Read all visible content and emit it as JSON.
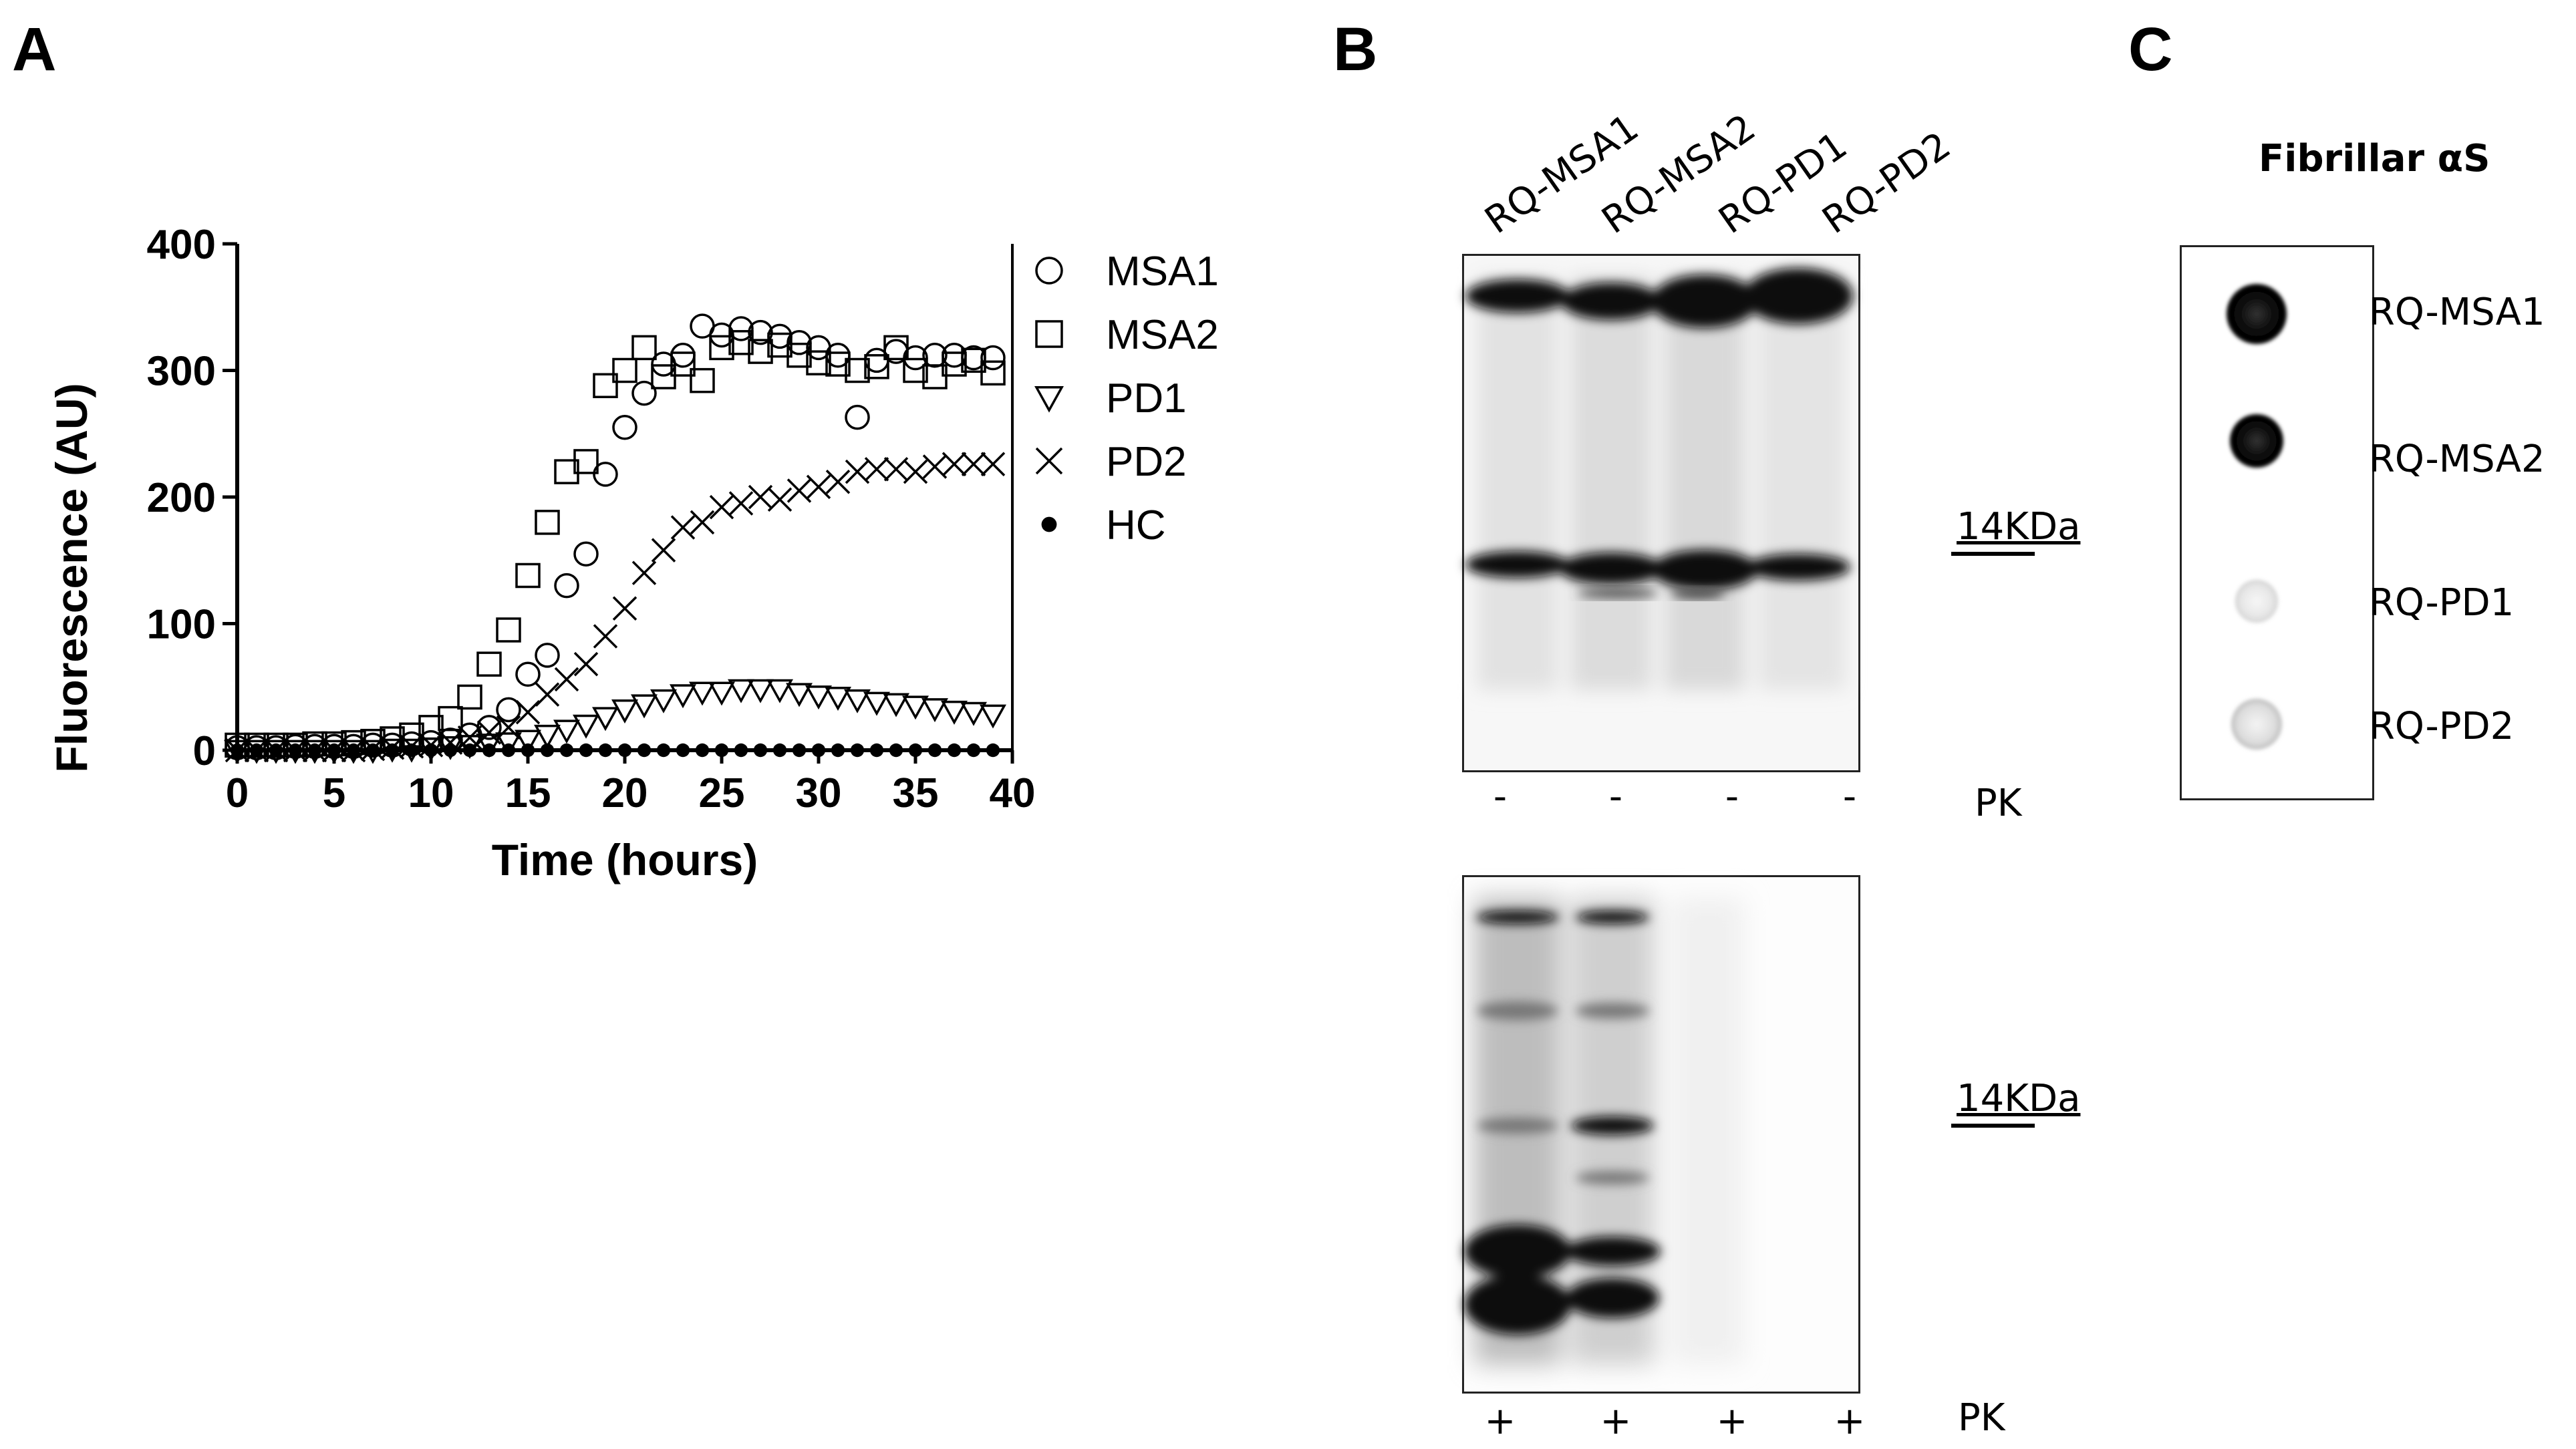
{
  "panels": {
    "a_letter": "A",
    "b_letter": "B",
    "c_letter": "C"
  },
  "chart_data": {
    "type": "scatter",
    "title": "",
    "xlabel": "Time (hours)",
    "ylabel": "Fluorescence (AU)",
    "xlim": [
      0,
      40
    ],
    "ylim": [
      0,
      400
    ],
    "xticks": [
      "0",
      "5",
      "10",
      "15",
      "20",
      "25",
      "30",
      "35",
      "40"
    ],
    "yticks": [
      "0",
      "100",
      "200",
      "300",
      "400"
    ],
    "grid": false,
    "legend_position": "right",
    "series": [
      {
        "name": "MSA1",
        "marker": "circle",
        "x": [
          0,
          1,
          2,
          3,
          4,
          5,
          6,
          7,
          8,
          9,
          10,
          11,
          12,
          13,
          14,
          15,
          16,
          17,
          18,
          19,
          20,
          21,
          22,
          23,
          24,
          25,
          26,
          27,
          28,
          29,
          30,
          31,
          32,
          33,
          34,
          35,
          36,
          37,
          38,
          39
        ],
        "y": [
          2,
          2,
          2,
          3,
          3,
          3,
          3,
          4,
          4,
          5,
          6,
          8,
          12,
          18,
          32,
          60,
          75,
          130,
          155,
          218,
          255,
          282,
          305,
          312,
          335,
          328,
          333,
          330,
          327,
          322,
          318,
          312,
          263,
          308,
          315,
          310,
          312,
          312,
          310,
          310
        ]
      },
      {
        "name": "MSA2",
        "marker": "square",
        "x": [
          0,
          1,
          2,
          3,
          4,
          5,
          6,
          7,
          8,
          9,
          10,
          11,
          12,
          13,
          14,
          15,
          16,
          17,
          18,
          19,
          20,
          21,
          22,
          23,
          24,
          25,
          26,
          27,
          28,
          29,
          30,
          31,
          32,
          33,
          34,
          35,
          36,
          37,
          38,
          39
        ],
        "y": [
          4,
          4,
          4,
          4,
          5,
          5,
          6,
          7,
          9,
          12,
          18,
          25,
          42,
          68,
          95,
          138,
          180,
          220,
          228,
          288,
          300,
          318,
          295,
          305,
          292,
          318,
          322,
          315,
          320,
          312,
          306,
          305,
          300,
          303,
          318,
          300,
          295,
          305,
          308,
          298
        ]
      },
      {
        "name": "PD1",
        "marker": "triangle-down",
        "x": [
          0,
          1,
          2,
          3,
          4,
          5,
          6,
          7,
          8,
          9,
          10,
          11,
          12,
          13,
          14,
          15,
          16,
          17,
          18,
          19,
          20,
          21,
          22,
          23,
          24,
          25,
          26,
          27,
          28,
          29,
          30,
          31,
          32,
          33,
          34,
          35,
          36,
          37,
          38,
          39
        ],
        "y": [
          0,
          0,
          0,
          0,
          0,
          0,
          0,
          0,
          1,
          1,
          2,
          3,
          4,
          5,
          6,
          8,
          12,
          16,
          20,
          26,
          32,
          36,
          40,
          44,
          46,
          46,
          48,
          48,
          48,
          45,
          43,
          42,
          40,
          38,
          37,
          35,
          33,
          31,
          30,
          28
        ]
      },
      {
        "name": "PD2",
        "marker": "x",
        "x": [
          0,
          1,
          2,
          3,
          4,
          5,
          6,
          7,
          8,
          9,
          10,
          11,
          12,
          13,
          14,
          15,
          16,
          17,
          18,
          19,
          20,
          21,
          22,
          23,
          24,
          25,
          26,
          27,
          28,
          29,
          30,
          31,
          32,
          33,
          34,
          35,
          36,
          37,
          38,
          39
        ],
        "y": [
          0,
          0,
          0,
          0,
          0,
          0,
          0,
          1,
          2,
          3,
          4,
          6,
          10,
          14,
          18,
          30,
          44,
          56,
          68,
          90,
          112,
          140,
          158,
          176,
          180,
          192,
          195,
          200,
          198,
          205,
          208,
          212,
          220,
          222,
          222,
          220,
          224,
          226,
          226,
          226
        ]
      },
      {
        "name": "HC",
        "marker": "dot",
        "x": [
          0,
          1,
          2,
          3,
          4,
          5,
          6,
          7,
          8,
          9,
          10,
          11,
          12,
          13,
          14,
          15,
          16,
          17,
          18,
          19,
          20,
          21,
          22,
          23,
          24,
          25,
          26,
          27,
          28,
          29,
          30,
          31,
          32,
          33,
          34,
          35,
          36,
          37,
          38,
          39
        ],
        "y": [
          0,
          0,
          0,
          0,
          0,
          0,
          0,
          0,
          0,
          0,
          0,
          0,
          0,
          0,
          0,
          0,
          0,
          0,
          0,
          0,
          0,
          0,
          0,
          0,
          0,
          0,
          0,
          0,
          0,
          0,
          0,
          0,
          0,
          0,
          0,
          0,
          0,
          0,
          0,
          0
        ]
      }
    ]
  },
  "western_blot": {
    "lanes": [
      "RQ-MSA1",
      "RQ-MSA2",
      "RQ-PD1",
      "RQ-PD2"
    ],
    "marker_label_top": "14KDa",
    "marker_label_bottom": "14KDa",
    "pk_label_top": "PK",
    "pk_label_bottom": "PK",
    "pk_signs_top": [
      "-",
      "-",
      "-",
      "-"
    ],
    "pk_signs_bottom": [
      "+",
      "+",
      "+",
      "+"
    ]
  },
  "dot_blot": {
    "title": "Fibrillar αS",
    "labels": [
      "RQ-MSA1",
      "RQ-MSA2",
      "RQ-PD1",
      "RQ-PD2"
    ]
  }
}
